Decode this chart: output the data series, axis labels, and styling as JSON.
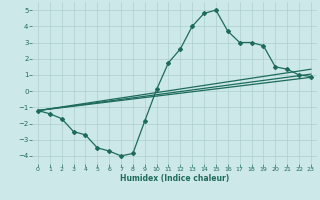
{
  "xlabel": "Humidex (Indice chaleur)",
  "xlim": [
    -0.5,
    23.5
  ],
  "ylim": [
    -4.5,
    5.5
  ],
  "xticks": [
    0,
    1,
    2,
    3,
    4,
    5,
    6,
    7,
    8,
    9,
    10,
    11,
    12,
    13,
    14,
    15,
    16,
    17,
    18,
    19,
    20,
    21,
    22,
    23
  ],
  "yticks": [
    -4,
    -3,
    -2,
    -1,
    0,
    1,
    2,
    3,
    4,
    5
  ],
  "bg_color": "#cde8e8",
  "grid_color": "#aed0d0",
  "line_color": "#1e6b5e",
  "line1_x": [
    0,
    1,
    2,
    3,
    4,
    5,
    6,
    7,
    8,
    9,
    10,
    11,
    12,
    13,
    14,
    15,
    16,
    17,
    18,
    19,
    20,
    21,
    22,
    23
  ],
  "line1_y": [
    -1.2,
    -1.4,
    -1.7,
    -2.5,
    -2.7,
    -3.5,
    -3.7,
    -4.0,
    -3.85,
    -1.85,
    0.1,
    1.75,
    2.6,
    4.0,
    4.8,
    5.0,
    3.7,
    3.0,
    3.0,
    2.8,
    1.5,
    1.35,
    1.0,
    0.9
  ],
  "line2_x": [
    0,
    23
  ],
  "line2_y": [
    -1.2,
    1.05
  ],
  "line3_x": [
    0,
    23
  ],
  "line3_y": [
    -1.2,
    1.35
  ],
  "line4_x": [
    0,
    23
  ],
  "line4_y": [
    -1.2,
    0.85
  ]
}
